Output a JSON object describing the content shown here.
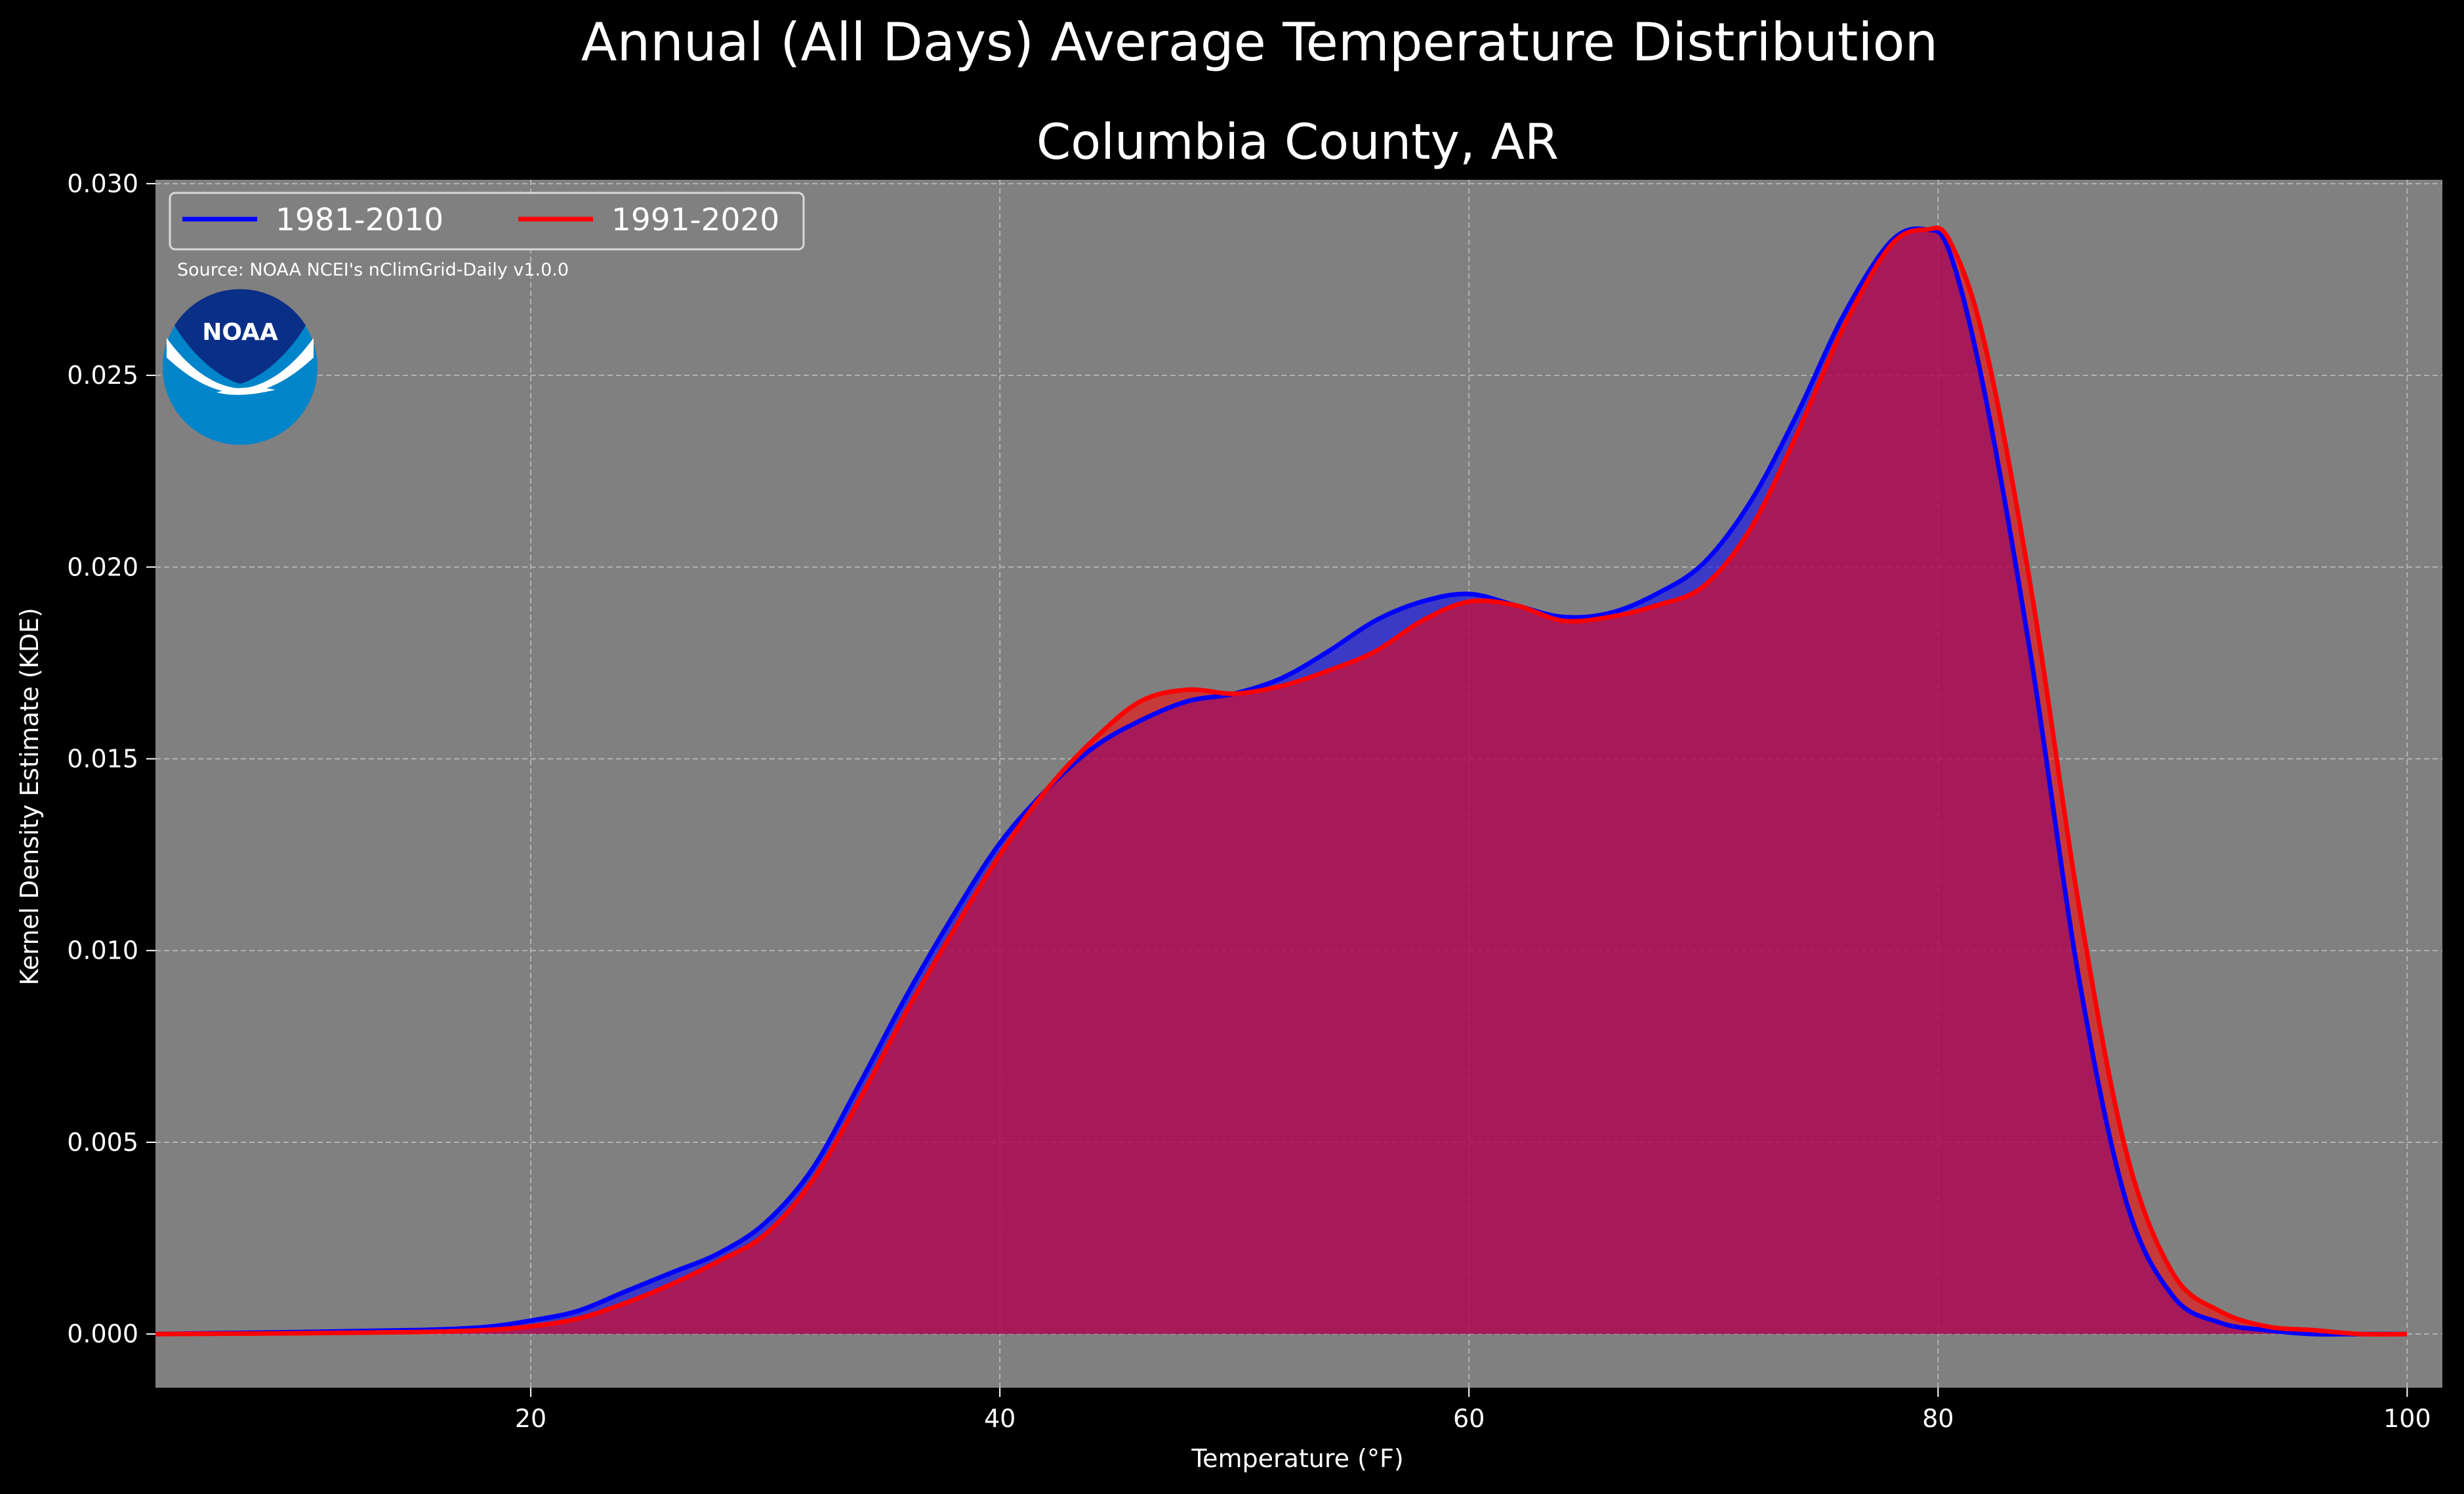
{
  "chart_data": {
    "type": "area",
    "suptitle": "Annual (All Days) Average Temperature Distribution",
    "title": "Columbia County, AR",
    "xlabel": "Temperature (°F)",
    "ylabel": "Kernel Density Estimate (KDE)",
    "xlim": [
      4,
      101.5
    ],
    "ylim": [
      -0.0014,
      0.0301
    ],
    "xticks": [
      20,
      40,
      60,
      80,
      100
    ],
    "yticks": [
      0.0,
      0.005,
      0.01,
      0.015,
      0.02,
      0.025,
      0.03
    ],
    "xtick_labels": [
      "20",
      "40",
      "60",
      "80",
      "100"
    ],
    "ytick_labels": [
      "0.000",
      "0.005",
      "0.010",
      "0.015",
      "0.020",
      "0.025",
      "0.030"
    ],
    "grid": true,
    "legend_position": "top-left",
    "background_color": "#808080",
    "series": [
      {
        "name": "1981-2010",
        "color": "#0000ff",
        "x": [
          4,
          10,
          15,
          18,
          20,
          22,
          24,
          26,
          28,
          30,
          32,
          34,
          36,
          38,
          40,
          42,
          44,
          46,
          48,
          50,
          52,
          54,
          56,
          58,
          60,
          62,
          64,
          66,
          68,
          70,
          72,
          74,
          76,
          78,
          79.5,
          80.5,
          82,
          84,
          86,
          88,
          90,
          92,
          94,
          96,
          98,
          100
        ],
        "y": [
          0.0,
          5e-05,
          0.0001,
          0.00018,
          0.00035,
          0.0006,
          0.0011,
          0.0016,
          0.0021,
          0.0029,
          0.0043,
          0.0065,
          0.0088,
          0.0109,
          0.0128,
          0.0142,
          0.0153,
          0.016,
          0.0165,
          0.0167,
          0.0171,
          0.0178,
          0.0186,
          0.0191,
          0.0193,
          0.019,
          0.0187,
          0.0188,
          0.0193,
          0.0201,
          0.0217,
          0.024,
          0.0266,
          0.0285,
          0.0288,
          0.0282,
          0.0245,
          0.0175,
          0.0093,
          0.0035,
          0.001,
          0.0003,
          0.0001,
          0.0,
          0.0,
          0.0
        ]
      },
      {
        "name": "1991-2020",
        "color": "#ff0000",
        "x": [
          4,
          10,
          15,
          18,
          20,
          22,
          24,
          26,
          28,
          30,
          32,
          34,
          36,
          38,
          40,
          42,
          44,
          46,
          48,
          50,
          52,
          54,
          56,
          58,
          60,
          62,
          64,
          66,
          68,
          70,
          72,
          74,
          76,
          78,
          79.5,
          80.5,
          82,
          84,
          86,
          88,
          90,
          92,
          94,
          96,
          98,
          100
        ],
        "y": [
          0.0,
          2e-05,
          5e-05,
          0.0001,
          0.0002,
          0.0004,
          0.0008,
          0.0013,
          0.0019,
          0.0026,
          0.004,
          0.0061,
          0.0084,
          0.0105,
          0.0125,
          0.0142,
          0.0155,
          0.0165,
          0.0168,
          0.0167,
          0.0169,
          0.0173,
          0.0178,
          0.0186,
          0.0191,
          0.019,
          0.0186,
          0.0187,
          0.019,
          0.0195,
          0.021,
          0.0235,
          0.0263,
          0.0284,
          0.0288,
          0.0285,
          0.0258,
          0.0193,
          0.0112,
          0.0048,
          0.0016,
          0.0006,
          0.0002,
          0.0001,
          0.0,
          0.0
        ]
      }
    ],
    "annotations": [
      "Source: NOAA NCEI's nClimGrid-Daily v1.0.0"
    ]
  },
  "logo": {
    "text": "NOAA"
  }
}
